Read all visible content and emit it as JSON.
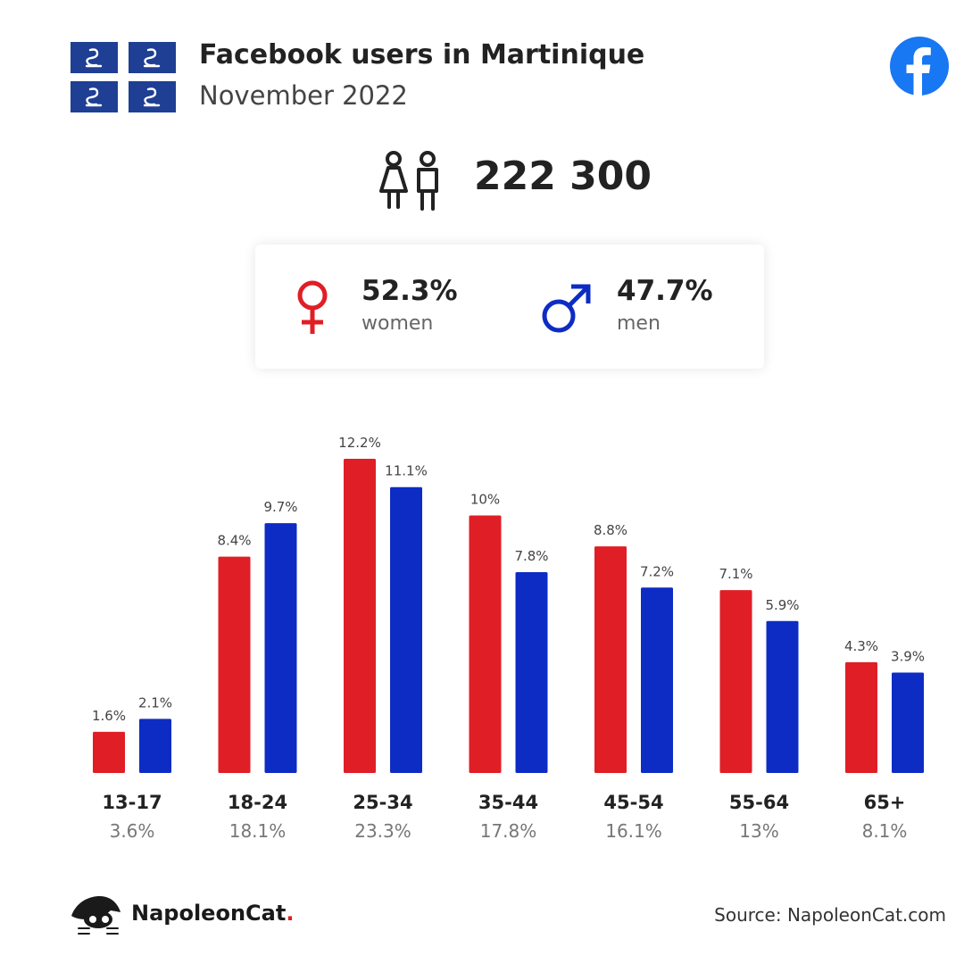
{
  "header": {
    "title": "Facebook users in Martinique",
    "subtitle": "November 2022"
  },
  "colors": {
    "women": "#e01e26",
    "men": "#0d2cc4",
    "flag_blue": "#1e3f94",
    "facebook": "#1877f2"
  },
  "icons": {
    "flag": "martinique-flag-icon",
    "facebook": "facebook-logo-icon",
    "users": "users-icon",
    "female": "female-symbol-icon",
    "male": "male-symbol-icon",
    "brand": "napoleoncat-logo-icon"
  },
  "users": {
    "total": "222 300"
  },
  "gender": {
    "women_pct": "52.3%",
    "women_label": "women",
    "men_pct": "47.7%",
    "men_label": "men"
  },
  "chart_data": {
    "type": "bar",
    "categories": [
      "13-17",
      "18-24",
      "25-34",
      "35-44",
      "45-54",
      "55-64",
      "65+"
    ],
    "category_totals": [
      "3.6%",
      "18.1%",
      "23.3%",
      "17.8%",
      "16.1%",
      "13%",
      "8.1%"
    ],
    "series": [
      {
        "values": [
          1.6,
          8.4,
          12.2,
          10,
          8.8,
          7.1,
          4.3
        ],
        "labels": [
          "1.6%",
          "8.4%",
          "12.2%",
          "10%",
          "8.8%",
          "7.1%",
          "4.3%"
        ]
      },
      {
        "values": [
          2.1,
          9.7,
          11.1,
          7.8,
          7.2,
          5.9,
          3.9
        ],
        "labels": [
          "2.1%",
          "9.7%",
          "11.1%",
          "7.8%",
          "7.2%",
          "5.9%",
          "3.9%"
        ]
      }
    ],
    "ylim": [
      0,
      12.2
    ],
    "grid": false
  },
  "footer": {
    "brand": "NapoleonCat",
    "brand_dot": ".",
    "source": "Source: NapoleonCat.com"
  }
}
